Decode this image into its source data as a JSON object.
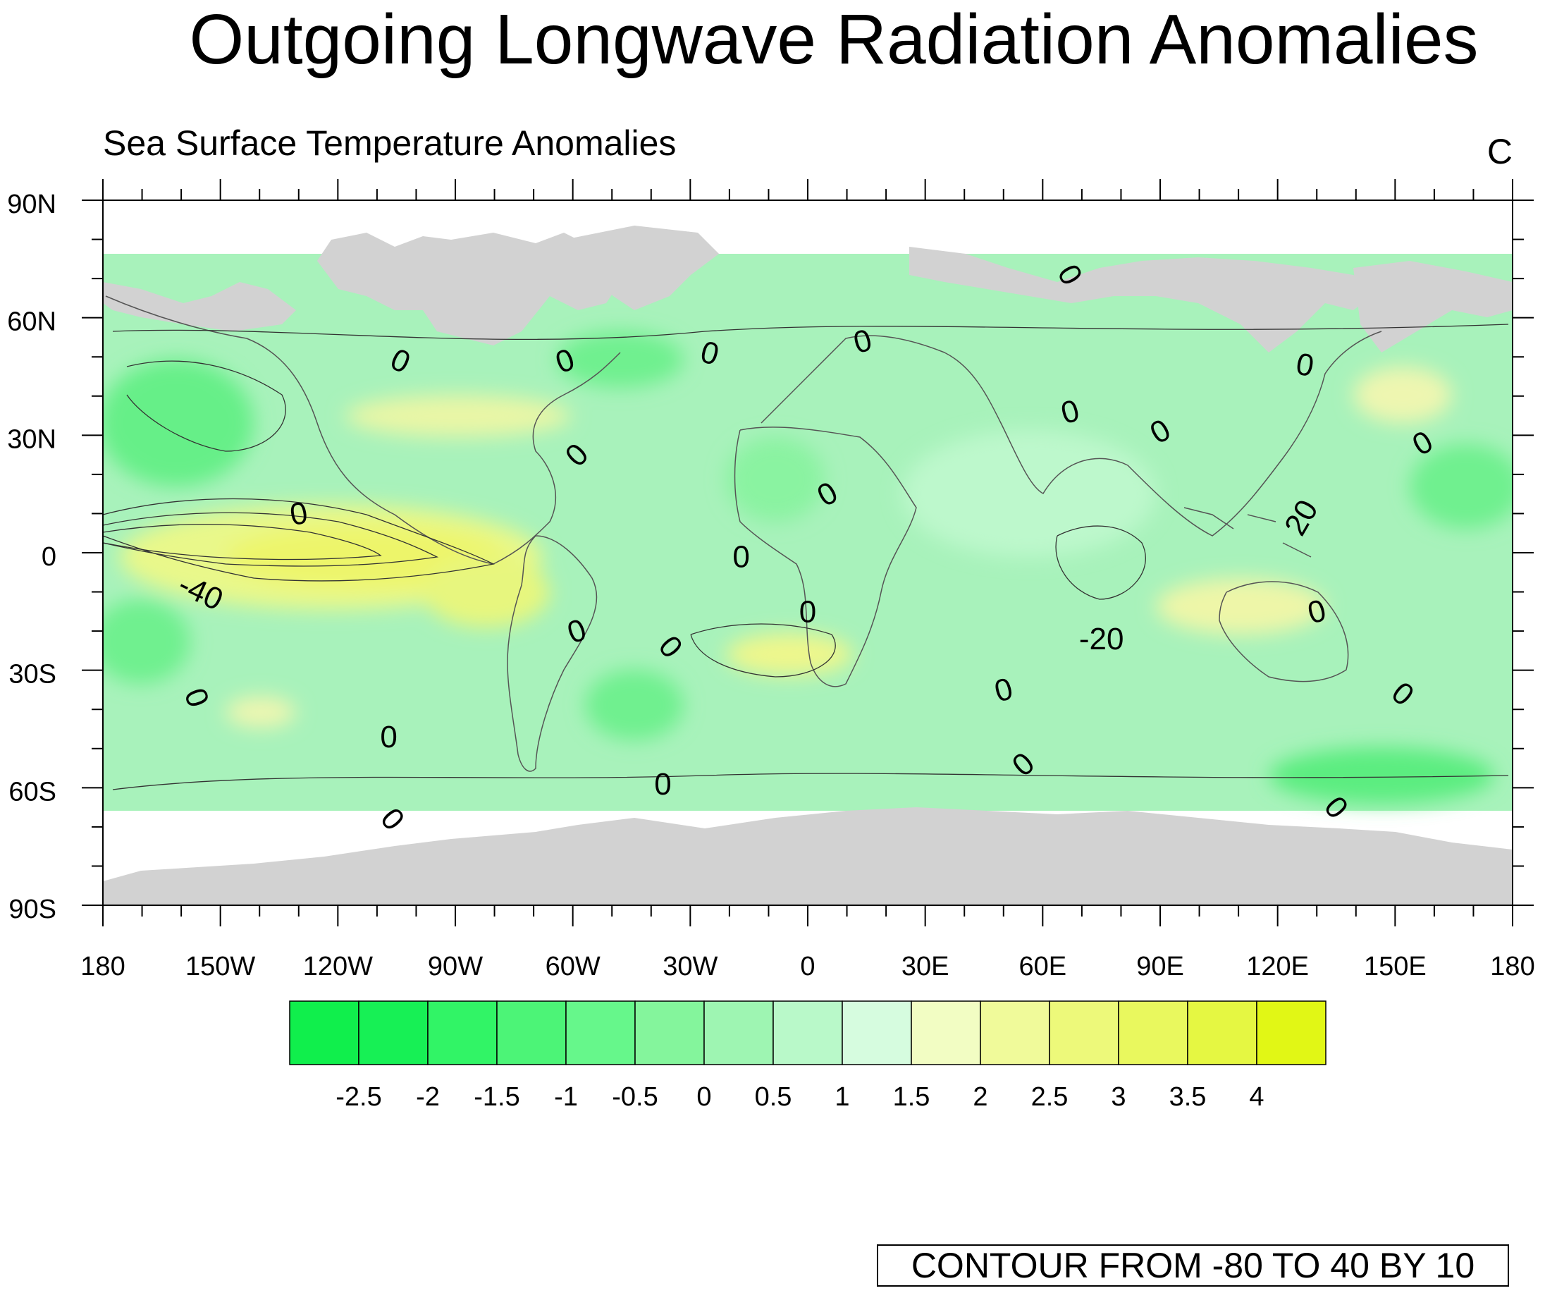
{
  "title": "Outgoing Longwave Radiation Anomalies",
  "subtitle_left": "Sea Surface Temperature Anomalies",
  "subtitle_right": "C",
  "axes": {
    "lat_ticks": [
      "90N",
      "60N",
      "30N",
      "0",
      "30S",
      "60S",
      "90S"
    ],
    "lon_ticks": [
      "180",
      "150W",
      "120W",
      "90W",
      "60W",
      "30W",
      "0",
      "30E",
      "60E",
      "90E",
      "120E",
      "150E",
      "180"
    ],
    "lon_range": [
      -180,
      180
    ],
    "lat_range": [
      -90,
      90
    ],
    "grid": false
  },
  "colors": {
    "land": "#d2d2d2",
    "missing": "#ffffff",
    "contour_line": "#333333"
  },
  "colorbar": {
    "labels": [
      "-2.5",
      "-2",
      "-1.5",
      "-1",
      "-0.5",
      "0",
      "0.5",
      "1",
      "1.5",
      "2",
      "2.5",
      "3",
      "3.5",
      "4"
    ],
    "colors": [
      "#17f055",
      "#31f466",
      "#4cf477",
      "#66f78b",
      "#84f59c",
      "#9ef5b2",
      "#b9f9c9",
      "#d6fcdf",
      "#f2fdc3",
      "#f0fa9a",
      "#edf97a",
      "#e9f85e",
      "#e5f742",
      "#e1f715"
    ]
  },
  "contour_labels": [
    {
      "text": "0",
      "lon": -104,
      "lat": 49,
      "angle": 25
    },
    {
      "text": "0",
      "lon": -62,
      "lat": 49,
      "angle": -20
    },
    {
      "text": "0",
      "lon": -25,
      "lat": 51,
      "angle": 15
    },
    {
      "text": "0",
      "lon": 14,
      "lat": 54,
      "angle": -15
    },
    {
      "text": "0",
      "lon": 67,
      "lat": 71,
      "angle": 60
    },
    {
      "text": "0",
      "lon": 67,
      "lat": 36,
      "angle": -15
    },
    {
      "text": "0",
      "lon": 90,
      "lat": 31,
      "angle": -30
    },
    {
      "text": "0",
      "lon": 127,
      "lat": 48,
      "angle": 10
    },
    {
      "text": "0",
      "lon": 157,
      "lat": 28,
      "angle": -30
    },
    {
      "text": "0",
      "lon": -59,
      "lat": 25,
      "angle": -45
    },
    {
      "text": "0",
      "lon": 5,
      "lat": 15,
      "angle": -30
    },
    {
      "text": "0",
      "lon": -130,
      "lat": 10,
      "angle": -10
    },
    {
      "text": "0",
      "lon": -17,
      "lat": -1,
      "angle": 0
    },
    {
      "text": "0",
      "lon": 0,
      "lat": -15,
      "angle": 0
    },
    {
      "text": "0",
      "lon": -59,
      "lat": -20,
      "angle": -20
    },
    {
      "text": "0",
      "lon": -35,
      "lat": -24,
      "angle": 50
    },
    {
      "text": "0",
      "lon": 130,
      "lat": -15,
      "angle": -15
    },
    {
      "text": "0",
      "lon": -156,
      "lat": -37,
      "angle": 70
    },
    {
      "text": "0",
      "lon": -107,
      "lat": -47,
      "angle": 0
    },
    {
      "text": "0",
      "lon": 50,
      "lat": -35,
      "angle": -15
    },
    {
      "text": "0",
      "lon": 152,
      "lat": -36,
      "angle": 40
    },
    {
      "text": "0",
      "lon": 55,
      "lat": -54,
      "angle": -40
    },
    {
      "text": "0",
      "lon": -37,
      "lat": -59,
      "angle": 0
    },
    {
      "text": "0",
      "lon": -106,
      "lat": -68,
      "angle": 50
    },
    {
      "text": "0",
      "lon": 135,
      "lat": -65,
      "angle": 50
    },
    {
      "text": "-40",
      "lon": -155,
      "lat": -10,
      "angle": 25
    },
    {
      "text": "20",
      "lon": 126,
      "lat": 9,
      "angle": -60
    },
    {
      "text": "-20",
      "lon": 75,
      "lat": -22,
      "angle": 0
    }
  ],
  "footer": "CONTOUR FROM -80 TO 40 BY 10"
}
